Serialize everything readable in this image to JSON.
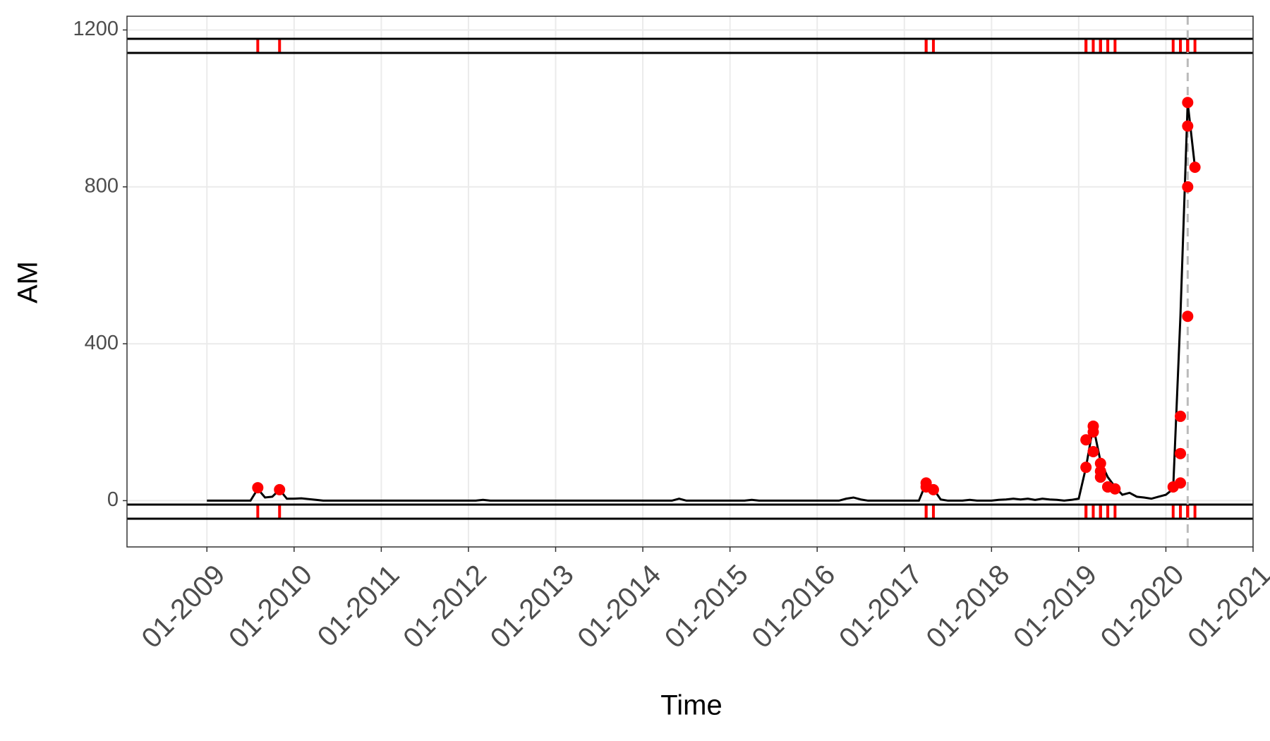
{
  "chart_data": {
    "type": "line",
    "x_label": "Time",
    "y_label": "AM",
    "xlim": [
      "02-2008",
      "01-2021"
    ],
    "xticks": [
      "01-2009",
      "01-2010",
      "01-2011",
      "01-2012",
      "01-2013",
      "01-2014",
      "01-2015",
      "01-2016",
      "01-2017",
      "01-2018",
      "01-2019",
      "01-2020",
      "01-2021"
    ],
    "ylim": [
      -118,
      1235
    ],
    "yticks": [
      0,
      400,
      800,
      1200
    ],
    "grid": true,
    "vline": "04-2020",
    "series": [
      {
        "color": "#000000",
        "x": [
          "01-2009",
          "02-2009",
          "03-2009",
          "04-2009",
          "05-2009",
          "06-2009",
          "07-2009",
          "08-2009",
          "09-2009",
          "10-2009",
          "11-2009",
          "12-2009",
          "01-2010",
          "02-2010",
          "03-2010",
          "04-2010",
          "05-2010",
          "06-2010",
          "07-2010",
          "08-2010",
          "09-2010",
          "10-2010",
          "11-2010",
          "12-2010",
          "01-2011",
          "02-2011",
          "03-2011",
          "04-2011",
          "05-2011",
          "06-2011",
          "07-2011",
          "08-2011",
          "09-2011",
          "10-2011",
          "11-2011",
          "12-2011",
          "01-2012",
          "02-2012",
          "03-2012",
          "04-2012",
          "05-2012",
          "06-2012",
          "07-2012",
          "08-2012",
          "09-2012",
          "10-2012",
          "11-2012",
          "12-2012",
          "01-2013",
          "02-2013",
          "03-2013",
          "04-2013",
          "05-2013",
          "06-2013",
          "07-2013",
          "08-2013",
          "09-2013",
          "10-2013",
          "11-2013",
          "12-2013",
          "01-2014",
          "02-2014",
          "03-2014",
          "04-2014",
          "05-2014",
          "06-2014",
          "07-2014",
          "08-2014",
          "09-2014",
          "10-2014",
          "11-2014",
          "12-2014",
          "01-2015",
          "02-2015",
          "03-2015",
          "04-2015",
          "05-2015",
          "06-2015",
          "07-2015",
          "08-2015",
          "09-2015",
          "10-2015",
          "11-2015",
          "12-2015",
          "01-2016",
          "02-2016",
          "03-2016",
          "04-2016",
          "05-2016",
          "06-2016",
          "07-2016",
          "08-2016",
          "09-2016",
          "10-2016",
          "11-2016",
          "12-2016",
          "01-2017",
          "02-2017",
          "03-2017",
          "04-2017",
          "05-2017",
          "06-2017",
          "07-2017",
          "08-2017",
          "09-2017",
          "10-2017",
          "11-2017",
          "12-2017",
          "01-2018",
          "02-2018",
          "03-2018",
          "04-2018",
          "05-2018",
          "06-2018",
          "07-2018",
          "08-2018",
          "09-2018",
          "10-2018",
          "11-2018",
          "12-2018",
          "01-2019",
          "02-2019",
          "03-2019",
          "04-2019",
          "05-2019",
          "06-2019",
          "07-2019",
          "08-2019",
          "09-2019",
          "10-2019",
          "11-2019",
          "12-2019",
          "01-2020",
          "02-2020",
          "03-2020",
          "04-2020",
          "05-2020"
        ],
        "values": [
          0,
          0,
          0,
          0,
          0,
          0,
          0,
          30,
          8,
          10,
          28,
          5,
          5,
          6,
          4,
          2,
          0,
          0,
          0,
          0,
          0,
          0,
          0,
          0,
          0,
          0,
          0,
          0,
          0,
          0,
          0,
          0,
          0,
          0,
          0,
          0,
          0,
          0,
          2,
          0,
          0,
          0,
          0,
          0,
          0,
          0,
          0,
          0,
          0,
          0,
          0,
          0,
          0,
          0,
          0,
          0,
          0,
          0,
          0,
          0,
          0,
          0,
          0,
          0,
          0,
          5,
          0,
          0,
          0,
          0,
          0,
          0,
          0,
          0,
          0,
          2,
          0,
          0,
          0,
          0,
          0,
          0,
          0,
          0,
          0,
          0,
          0,
          0,
          5,
          8,
          3,
          0,
          0,
          0,
          0,
          0,
          0,
          0,
          0,
          45,
          30,
          3,
          0,
          0,
          0,
          2,
          0,
          0,
          0,
          2,
          3,
          5,
          3,
          5,
          2,
          5,
          3,
          2,
          0,
          2,
          5,
          85,
          190,
          100,
          60,
          35,
          15,
          20,
          10,
          8,
          5,
          10,
          15,
          30,
          470,
          1015,
          850
        ]
      }
    ],
    "points": {
      "color": "#ff0000",
      "x": [
        "08-2009",
        "11-2009",
        "04-2017",
        "04-2017",
        "05-2017",
        "02-2019",
        "02-2019",
        "03-2019",
        "03-2019",
        "03-2019",
        "04-2019",
        "04-2019",
        "04-2019",
        "05-2019",
        "05-2019",
        "06-2019",
        "02-2020",
        "03-2020",
        "03-2020",
        "03-2020",
        "04-2020",
        "04-2020",
        "04-2020",
        "04-2020",
        "05-2020"
      ],
      "values": [
        33,
        28,
        45,
        35,
        28,
        85,
        155,
        190,
        175,
        125,
        95,
        75,
        60,
        35,
        35,
        30,
        35,
        45,
        120,
        215,
        470,
        800,
        955,
        1015,
        850
      ]
    }
  }
}
